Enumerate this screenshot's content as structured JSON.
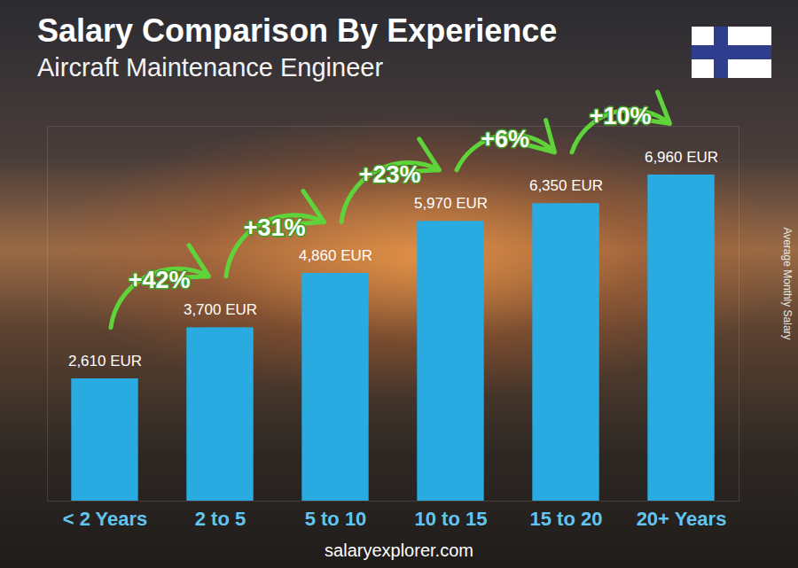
{
  "chart_data": {
    "type": "bar",
    "title": "Salary Comparison By Experience",
    "subtitle": "Aircraft Maintenance Engineer",
    "categories": [
      "< 2 Years",
      "2 to 5",
      "5 to 10",
      "10 to 15",
      "15 to 20",
      "20+ Years"
    ],
    "values": [
      2610,
      3700,
      4860,
      5970,
      6350,
      6960
    ],
    "value_labels": [
      "2,610 EUR",
      "3,700 EUR",
      "4,860 EUR",
      "5,970 EUR",
      "6,350 EUR",
      "6,960 EUR"
    ],
    "data_labels": true,
    "annotations": [
      "+42%",
      "+31%",
      "+23%",
      "+6%",
      "+10%"
    ],
    "y_label": "Average Monthly Salary",
    "source": "salaryexplorer.com",
    "color": "#29abe2",
    "ylim": [
      0,
      8000
    ],
    "tick_labels": "x",
    "grid": false
  }
}
